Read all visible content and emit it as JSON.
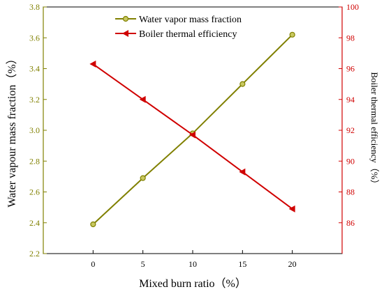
{
  "chart_data": {
    "type": "line",
    "x": [
      0,
      5,
      10,
      15,
      20
    ],
    "xlabel": "Mixed burn ratio（%）",
    "xlim": [
      -5,
      25
    ],
    "xticks": [
      "0",
      "5",
      "10",
      "15",
      "20"
    ],
    "series": [
      {
        "name": "Water vapor mass fraction",
        "axis": "left",
        "color": "#808000",
        "marker": "circle",
        "values": [
          2.39,
          2.69,
          2.98,
          3.3,
          3.62
        ]
      },
      {
        "name": "Boiler thermal efficiency",
        "axis": "right",
        "color": "#d00000",
        "marker": "left-triangle",
        "values": [
          96.3,
          94.0,
          91.7,
          89.3,
          86.9
        ]
      }
    ],
    "left_axis": {
      "label": "Water vapour mass fraction（%）",
      "ylim": [
        2.2,
        3.8
      ],
      "ticks": [
        "2.2",
        "2.4",
        "2.6",
        "2.8",
        "3.0",
        "3.2",
        "3.4",
        "3.6",
        "3.8"
      ],
      "color": "#808000"
    },
    "right_axis": {
      "label": "Boiler thermal efficiency（%）",
      "ylim": [
        84,
        100
      ],
      "ticks": [
        "86",
        "88",
        "90",
        "92",
        "94",
        "96",
        "98",
        "100"
      ],
      "color": "#d00000"
    },
    "grid": false,
    "legend_position": "top-center"
  }
}
